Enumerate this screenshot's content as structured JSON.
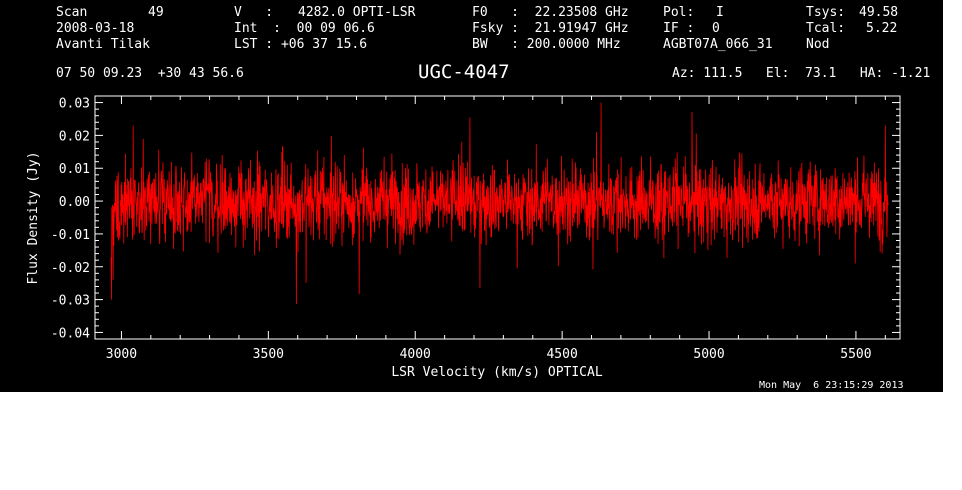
{
  "header": {
    "scan_label": "Scan",
    "scan_value": "49",
    "date": "2008-03-18",
    "observer": "Avanti Tilak",
    "v_label": "V   :",
    "v_value": "4282.0 OPTI-LSR",
    "int_line": "Int  :  00 09 06.6",
    "lst_line": "LST : +06 37 15.6",
    "f0_line": "F0   :  22.23508 GHz",
    "fsky_line": "Fsky :  21.91947 GHz",
    "bw_line": "BW   : 200.0000 MHz",
    "pol_label": "Pol:",
    "pol_value": "I",
    "if_label": "IF :",
    "if_value": "0",
    "project": "AGBT07A_066_31",
    "tsys_label": "Tsys:",
    "tsys_value": "49.58",
    "tcal_label": "Tcal:",
    "tcal_value": "5.22",
    "mode": "Nod",
    "coords": "07 50 09.23  +30 43 56.6",
    "az_el_ha": "Az: 111.5   El:  73.1   HA: -1.21"
  },
  "timestamp": "Mon May  6 23:15:29 2013",
  "colors": {
    "background": "#000000",
    "axes": "#ffffff",
    "trace": "#ff0000"
  },
  "chart_data": {
    "type": "line",
    "title": "UGC-4047",
    "xlabel": "LSR Velocity (km/s) OPTICAL",
    "ylabel": "Flux Density (Jy)",
    "xlim": [
      2910,
      5650
    ],
    "ylim": [
      -0.042,
      0.032
    ],
    "x_ticks": [
      3000,
      3500,
      4000,
      4500,
      5000,
      5500
    ],
    "x_tick_labels": [
      "3000",
      "3500",
      "4000",
      "4500",
      "5000",
      "5500"
    ],
    "y_ticks": [
      -0.04,
      -0.03,
      -0.02,
      -0.01,
      0.0,
      0.01,
      0.02,
      0.03
    ],
    "y_tick_labels": [
      "-0.04",
      "-0.03",
      "-0.02",
      "-0.01",
      "0.00",
      "0.01",
      "0.02",
      "0.03"
    ],
    "grid": false,
    "series": [
      {
        "x_start": 2965,
        "x_end": 5610,
        "rms": 0.006,
        "mean": 0.0,
        "edge_features": [
          {
            "x": 2966,
            "y": -0.03
          },
          {
            "x": 2972,
            "y": -0.024
          },
          {
            "x": 2990,
            "y": -0.012
          },
          {
            "x": 3040,
            "y": 0.023
          },
          {
            "x": 5600,
            "y": 0.023
          }
        ]
      }
    ]
  }
}
